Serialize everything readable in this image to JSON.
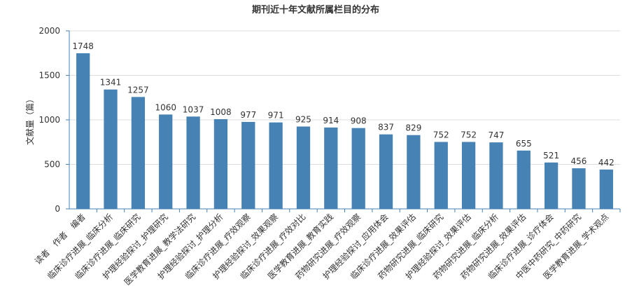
{
  "chart_data": {
    "type": "bar",
    "title": "期刊近十年文献所属栏目的分布",
    "ylabel": "文献量（篇）",
    "xlabel": "",
    "ylim": [
      0,
      2000
    ],
    "yticks": [
      0,
      500,
      1000,
      1500,
      2000
    ],
    "grid": true,
    "bar_color": "#4682b4",
    "categories": [
      "读者　作者　编者",
      "临床诊疗进展_临床分析",
      "临床诊疗进展_临床研究",
      "护理经验探讨_护理研究",
      "医学教育进展_教学法研究",
      "护理经验探讨_护理分析",
      "临床诊疗进展_疗效观察",
      "护理经验探讨_效果观察",
      "临床诊疗进展_疗效对比",
      "医学教育进展_教育实践",
      "药物研究进展_疗效观察",
      "护理经验探讨_应用体会",
      "临床诊疗进展_效果评估",
      "药物研究进展_临床研究",
      "护理经验探讨_效果评估",
      "药物研究进展_临床分析",
      "药物研究进展_效果评估",
      "临床诊疗进展_诊疗体会",
      "中医中药研究_中药研究",
      "医学教育进展_学术观点"
    ],
    "values": [
      1748,
      1341,
      1257,
      1060,
      1037,
      1008,
      977,
      971,
      925,
      914,
      908,
      837,
      829,
      752,
      752,
      747,
      655,
      521,
      456,
      442
    ]
  }
}
